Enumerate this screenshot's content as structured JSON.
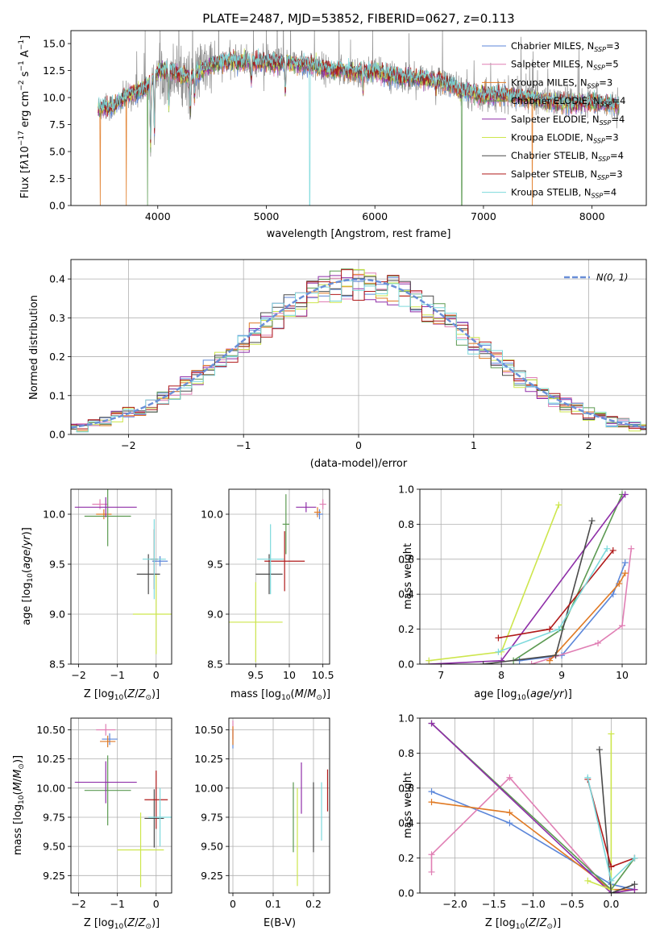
{
  "figure": {
    "title": "PLATE=2487, MJD=53852, FIBERID=0627, z=0.113"
  },
  "colors": {
    "Chabrier MILES": "#5b86d9",
    "Salpeter MILES": "#e07fb4",
    "Kroupa MILES": "#e07a24",
    "Chabrier ELODIE": "#5c9a52",
    "Salpeter ELODIE": "#8f2fa8",
    "Kroupa ELODIE": "#cde64c",
    "Chabrier STELIB": "#4a4a4a",
    "Salpeter STELIB": "#b01a1a",
    "Kroupa STELIB": "#7dd9dc",
    "data": "#8a8a8a",
    "normal": "#6a8fd8"
  },
  "panels": {
    "spectrum": {
      "ylabel": "Flux [f",
      "xlabel": "wavelength [Angstrom, rest frame]"
    },
    "histogram": {
      "ylabel": "Normed distribution",
      "xlabel": "(data-model)/error"
    },
    "age_z": {
      "ylabel": "age  [log",
      "xlabel": "Z [log"
    },
    "age_mass": {
      "xlabel": "mass [log"
    },
    "weight_age": {
      "ylabel": "mass weight",
      "xlabel": "age  [log"
    },
    "mass_z": {
      "ylabel": "mass [log",
      "xlabel": "Z [log"
    },
    "mass_ebv": {
      "xlabel": "E(B-V)"
    },
    "weight_z": {
      "ylabel": "mass weight",
      "xlabel": "Z [log"
    }
  },
  "legend_spectrum": [
    {
      "model": "Chabrier MILES",
      "n": "3"
    },
    {
      "model": "Salpeter MILES",
      "n": "5"
    },
    {
      "model": "Kroupa MILES",
      "n": "3"
    },
    {
      "model": "Chabrier ELODIE",
      "n": "4"
    },
    {
      "model": "Salpeter ELODIE",
      "n": "4"
    },
    {
      "model": "Kroupa ELODIE",
      "n": "3"
    },
    {
      "model": "Chabrier STELIB",
      "n": "4"
    },
    {
      "model": "Salpeter STELIB",
      "n": "3"
    },
    {
      "model": "Kroupa STELIB",
      "n": "4"
    }
  ],
  "legend_hist": "N(0, 1)",
  "chart_data": [
    {
      "type": "line",
      "id": "spectrum",
      "xlim": [
        3200,
        8500
      ],
      "ylim": [
        0,
        16.2
      ],
      "xticks": [
        4000,
        5000,
        6000,
        7000,
        8000
      ],
      "yticks": [
        0.0,
        2.5,
        5.0,
        7.5,
        10.0,
        12.5,
        15.0
      ],
      "ytick_labels": [
        "0.0",
        "2.5",
        "5.0",
        "7.5",
        "10.0",
        "12.5",
        "15.0"
      ],
      "continuum": [
        [
          3450,
          9.0
        ],
        [
          3600,
          9.2
        ],
        [
          3700,
          10.0
        ],
        [
          3800,
          10.5
        ],
        [
          3900,
          11.0
        ],
        [
          4000,
          12.4
        ],
        [
          4100,
          12.5
        ],
        [
          4200,
          12.1
        ],
        [
          4300,
          11.9
        ],
        [
          4500,
          13.1
        ],
        [
          4700,
          13.4
        ],
        [
          5000,
          13.2
        ],
        [
          5200,
          13.2
        ],
        [
          5400,
          13.0
        ],
        [
          5600,
          12.5
        ],
        [
          5800,
          12.4
        ],
        [
          6000,
          12.4
        ],
        [
          6200,
          11.9
        ],
        [
          6400,
          11.8
        ],
        [
          6600,
          11.6
        ],
        [
          6800,
          10.6
        ],
        [
          7000,
          10.2
        ],
        [
          7200,
          10.2
        ],
        [
          7400,
          10.0
        ],
        [
          7600,
          9.6
        ],
        [
          7800,
          9.5
        ],
        [
          8000,
          9.5
        ],
        [
          8250,
          9.3
        ]
      ],
      "absorptions": [
        [
          3934,
          6.5
        ],
        [
          3969,
          5.8
        ],
        [
          4102,
          3.5
        ],
        [
          4300,
          3.8
        ],
        [
          4340,
          2.5
        ],
        [
          4861,
          2.0
        ],
        [
          5175,
          3.0
        ],
        [
          5890,
          2.0
        ],
        [
          6563,
          1.2
        ]
      ],
      "dropouts": [
        [
          3710,
          "Kroupa MILES"
        ],
        [
          3905,
          "Chabrier ELODIE"
        ],
        [
          5400,
          "Kroupa STELIB"
        ],
        [
          6800,
          "Chabrier ELODIE"
        ],
        [
          7450,
          "Kroupa MILES"
        ],
        [
          3470,
          "Kroupa MILES"
        ]
      ]
    },
    {
      "type": "histogram",
      "id": "residuals",
      "xlim": [
        -2.5,
        2.5
      ],
      "ylim": [
        0,
        0.45
      ],
      "xticks": [
        -2,
        -1,
        0,
        1,
        2
      ],
      "yticks": [
        0.0,
        0.1,
        0.2,
        0.3,
        0.4
      ],
      "ytick_labels": [
        "0.0",
        "0.1",
        "0.2",
        "0.3",
        "0.4"
      ],
      "bin_width": 0.1,
      "noise_amplitude": 0.035
    },
    {
      "type": "scatter",
      "id": "age_vs_Z",
      "xlim": [
        -2.2,
        0.4
      ],
      "ylim": [
        8.5,
        10.25
      ],
      "xticks": [
        -2,
        -1,
        0
      ],
      "yticks": [
        8.5,
        9.0,
        9.5,
        10.0
      ],
      "ytick_labels": [
        "8.5",
        "9.0",
        "9.5",
        "10.0"
      ],
      "points": [
        {
          "model": "Chabrier MILES",
          "x": 0.1,
          "y": 9.53,
          "xerr": 0.2,
          "yerr": 0.05
        },
        {
          "model": "Salpeter MILES",
          "x": -1.45,
          "y": 10.1,
          "xerr": 0.2,
          "yerr": 0.05
        },
        {
          "model": "Kroupa MILES",
          "x": -1.35,
          "y": 10.0,
          "xerr": 0.2,
          "yerr": 0.05
        },
        {
          "model": "Chabrier ELODIE",
          "x": -1.25,
          "y": 9.98,
          "xerr": 0.6,
          "yerr": 0.3
        },
        {
          "model": "Salpeter ELODIE",
          "x": -1.3,
          "y": 10.07,
          "xerr": 0.8,
          "yerr": 0.1
        },
        {
          "model": "Kroupa ELODIE",
          "x": 0.0,
          "y": 9.0,
          "xerr": 0.6,
          "yerr": 0.4
        },
        {
          "model": "Chabrier STELIB",
          "x": -0.2,
          "y": 9.4,
          "xerr": 0.3,
          "yerr": 0.2
        },
        {
          "model": "Salpeter STELIB",
          "x": -0.05,
          "y": 9.55,
          "xerr": 0.1,
          "yerr": 0.3
        },
        {
          "model": "Kroupa STELIB",
          "x": -0.05,
          "y": 9.55,
          "xerr": 0.3,
          "yerr": 0.4
        }
      ]
    },
    {
      "type": "scatter",
      "id": "age_vs_mass",
      "xlim": [
        9.1,
        10.6
      ],
      "ylim": [
        8.5,
        10.25
      ],
      "xticks": [
        9.5,
        10.0,
        10.5
      ],
      "yticks": [
        8.5,
        9.0,
        9.5,
        10.0
      ],
      "ytick_labels": [
        "8.5",
        "9.0",
        "9.5",
        "10.0"
      ],
      "points": [
        {
          "model": "Chabrier MILES",
          "x": 10.45,
          "y": 10.0,
          "xerr": 0.05,
          "yerr": 0.05
        },
        {
          "model": "Salpeter MILES",
          "x": 10.5,
          "y": 10.1,
          "xerr": 0.05,
          "yerr": 0.05
        },
        {
          "model": "Kroupa MILES",
          "x": 10.42,
          "y": 10.02,
          "xerr": 0.05,
          "yerr": 0.05
        },
        {
          "model": "Chabrier ELODIE",
          "x": 9.95,
          "y": 9.9,
          "xerr": 0.05,
          "yerr": 0.3
        },
        {
          "model": "Salpeter ELODIE",
          "x": 10.25,
          "y": 10.07,
          "xerr": 0.15,
          "yerr": 0.05
        },
        {
          "model": "Kroupa ELODIE",
          "x": 9.5,
          "y": 8.92,
          "xerr": 0.4,
          "yerr": 0.4
        },
        {
          "model": "Chabrier STELIB",
          "x": 9.7,
          "y": 9.4,
          "xerr": 0.2,
          "yerr": 0.2
        },
        {
          "model": "Salpeter STELIB",
          "x": 9.93,
          "y": 9.53,
          "xerr": 0.3,
          "yerr": 0.3
        },
        {
          "model": "Kroupa STELIB",
          "x": 9.72,
          "y": 9.55,
          "xerr": 0.2,
          "yerr": 0.35
        }
      ]
    },
    {
      "type": "line",
      "id": "weight_vs_age",
      "xlim": [
        6.65,
        10.4
      ],
      "ylim": [
        0,
        1.0
      ],
      "xticks": [
        7,
        8,
        9,
        10
      ],
      "yticks": [
        0.0,
        0.2,
        0.4,
        0.6,
        0.8,
        1.0
      ],
      "ytick_labels": [
        "0.0",
        "0.2",
        "0.4",
        "0.6",
        "0.8",
        "1.0"
      ],
      "series": [
        {
          "model": "Chabrier MILES",
          "x": [
            8.3,
            9.0,
            9.85,
            10.05
          ],
          "y": [
            0.02,
            0.05,
            0.4,
            0.58
          ]
        },
        {
          "model": "Salpeter MILES",
          "x": [
            8.5,
            9.6,
            10.0,
            10.15
          ],
          "y": [
            0.0,
            0.12,
            0.22,
            0.66
          ]
        },
        {
          "model": "Kroupa MILES",
          "x": [
            8.8,
            9.95,
            10.05
          ],
          "y": [
            0.02,
            0.46,
            0.52
          ]
        },
        {
          "model": "Chabrier ELODIE",
          "x": [
            8.2,
            9.0,
            10.0
          ],
          "y": [
            0.02,
            0.2,
            0.97
          ]
        },
        {
          "model": "Salpeter ELODIE",
          "x": [
            6.8,
            8.0,
            10.05
          ],
          "y": [
            0.0,
            0.02,
            0.97
          ]
        },
        {
          "model": "Kroupa ELODIE",
          "x": [
            6.8,
            8.0,
            8.95
          ],
          "y": [
            0.02,
            0.07,
            0.91
          ]
        },
        {
          "model": "Chabrier STELIB",
          "x": [
            7.7,
            8.9,
            9.5
          ],
          "y": [
            0.0,
            0.05,
            0.82
          ]
        },
        {
          "model": "Salpeter STELIB",
          "x": [
            7.95,
            8.8,
            9.85
          ],
          "y": [
            0.15,
            0.2,
            0.65
          ]
        },
        {
          "model": "Kroupa STELIB",
          "x": [
            7.95,
            8.95,
            9.75
          ],
          "y": [
            0.07,
            0.2,
            0.66
          ]
        }
      ]
    },
    {
      "type": "scatter",
      "id": "mass_vs_Z",
      "xlim": [
        -2.2,
        0.4
      ],
      "ylim": [
        9.1,
        10.6
      ],
      "xticks": [
        -2,
        -1,
        0
      ],
      "yticks": [
        9.25,
        9.5,
        9.75,
        10.0,
        10.25,
        10.5
      ],
      "ytick_labels": [
        "9.25",
        "9.50",
        "9.75",
        "10.00",
        "10.25",
        "10.50"
      ],
      "points": [
        {
          "model": "Chabrier MILES",
          "x": -1.2,
          "y": 10.42,
          "xerr": 0.2,
          "yerr": 0.05
        },
        {
          "model": "Salpeter MILES",
          "x": -1.3,
          "y": 10.5,
          "xerr": 0.25,
          "yerr": 0.05
        },
        {
          "model": "Kroupa MILES",
          "x": -1.25,
          "y": 10.4,
          "xerr": 0.2,
          "yerr": 0.05
        },
        {
          "model": "Chabrier ELODIE",
          "x": -1.25,
          "y": 9.98,
          "xerr": 0.6,
          "yerr": 0.3
        },
        {
          "model": "Salpeter ELODIE",
          "x": -1.3,
          "y": 10.05,
          "xerr": 0.8,
          "yerr": 0.18
        },
        {
          "model": "Kroupa ELODIE",
          "x": -0.4,
          "y": 9.47,
          "xerr": 0.6,
          "yerr": 0.32
        },
        {
          "model": "Chabrier STELIB",
          "x": -0.05,
          "y": 9.74,
          "xerr": 0.25,
          "yerr": 0.25
        },
        {
          "model": "Salpeter STELIB",
          "x": 0.0,
          "y": 9.9,
          "xerr": 0.3,
          "yerr": 0.25
        },
        {
          "model": "Kroupa STELIB",
          "x": 0.1,
          "y": 9.75,
          "xerr": 0.3,
          "yerr": 0.25
        }
      ]
    },
    {
      "type": "scatter",
      "id": "mass_vs_EBV",
      "xlim": [
        -0.01,
        0.24
      ],
      "ylim": [
        9.1,
        10.6
      ],
      "xticks": [
        0.0,
        0.1,
        0.2
      ],
      "yticks": [
        9.25,
        9.5,
        9.75,
        10.0,
        10.25,
        10.5
      ],
      "ytick_labels": [
        "9.25",
        "9.50",
        "9.75",
        "10.00",
        "10.25",
        "10.50"
      ],
      "points": [
        {
          "model": "Chabrier MILES",
          "x": 0.0,
          "y": 10.42,
          "xerr": 0,
          "yerr": 0.08
        },
        {
          "model": "Salpeter MILES",
          "x": 0.0,
          "y": 10.5,
          "xerr": 0,
          "yerr": 0.08
        },
        {
          "model": "Kroupa MILES",
          "x": 0.0,
          "y": 10.45,
          "xerr": 0,
          "yerr": 0.08
        },
        {
          "model": "Chabrier ELODIE",
          "x": 0.15,
          "y": 9.75,
          "xerr": 0,
          "yerr": 0.3
        },
        {
          "model": "Salpeter ELODIE",
          "x": 0.17,
          "y": 10.0,
          "xerr": 0,
          "yerr": 0.22
        },
        {
          "model": "Kroupa ELODIE",
          "x": 0.16,
          "y": 9.58,
          "xerr": 0,
          "yerr": 0.42
        },
        {
          "model": "Chabrier STELIB",
          "x": 0.2,
          "y": 9.75,
          "xerr": 0,
          "yerr": 0.3
        },
        {
          "model": "Salpeter STELIB",
          "x": 0.235,
          "y": 9.98,
          "xerr": 0,
          "yerr": 0.18
        },
        {
          "model": "Kroupa STELIB",
          "x": 0.22,
          "y": 9.8,
          "xerr": 0,
          "yerr": 0.25
        }
      ]
    },
    {
      "type": "line",
      "id": "weight_vs_Z",
      "xlim": [
        -2.45,
        0.45
      ],
      "ylim": [
        0,
        1.0
      ],
      "xticks": [
        -2.0,
        -1.5,
        -1.0,
        -0.5,
        0.0
      ],
      "xtick_labels": [
        "−2.0",
        "−1.5",
        "−1.0",
        "−0.5",
        "0.0"
      ],
      "yticks": [
        0.0,
        0.2,
        0.4,
        0.6,
        0.8,
        1.0
      ],
      "ytick_labels": [
        "0.0",
        "0.2",
        "0.4",
        "0.6",
        "0.8",
        "1.0"
      ],
      "series": [
        {
          "model": "Chabrier MILES",
          "x": [
            -2.3,
            -1.3,
            0.0,
            0.3
          ],
          "y": [
            0.58,
            0.4,
            0.05,
            0.02
          ]
        },
        {
          "model": "Salpeter MILES",
          "x": [
            -2.3,
            -2.3,
            -1.3,
            0.0,
            0.3
          ],
          "y": [
            0.12,
            0.22,
            0.66,
            0.0,
            0.02
          ]
        },
        {
          "model": "Kroupa MILES",
          "x": [
            -2.3,
            -1.3,
            0.0,
            0.3
          ],
          "y": [
            0.52,
            0.46,
            0.02,
            0.02
          ]
        },
        {
          "model": "Chabrier ELODIE",
          "x": [
            -2.3,
            0.0,
            0.3
          ],
          "y": [
            0.97,
            0.02,
            0.2
          ]
        },
        {
          "model": "Salpeter ELODIE",
          "x": [
            -2.3,
            0.0,
            0.3
          ],
          "y": [
            0.97,
            0.0,
            0.02
          ]
        },
        {
          "model": "Kroupa ELODIE",
          "x": [
            -0.3,
            0.0,
            0.0
          ],
          "y": [
            0.07,
            0.02,
            0.91
          ]
        },
        {
          "model": "Chabrier STELIB",
          "x": [
            -0.15,
            0.0,
            0.3
          ],
          "y": [
            0.82,
            0.0,
            0.05
          ]
        },
        {
          "model": "Salpeter STELIB",
          "x": [
            -0.3,
            0.0,
            0.3
          ],
          "y": [
            0.65,
            0.15,
            0.2
          ]
        },
        {
          "model": "Kroupa STELIB",
          "x": [
            -0.3,
            0.0,
            0.3
          ],
          "y": [
            0.66,
            0.07,
            0.2
          ]
        }
      ]
    }
  ]
}
